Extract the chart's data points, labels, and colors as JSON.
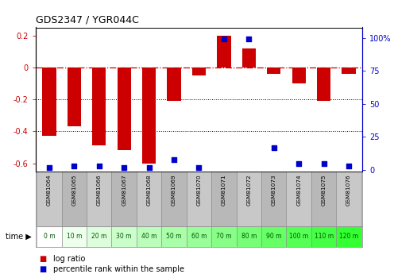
{
  "title": "GDS2347 / YGR044C",
  "samples": [
    "GSM81064",
    "GSM81065",
    "GSM81066",
    "GSM81067",
    "GSM81068",
    "GSM81069",
    "GSM81070",
    "GSM81071",
    "GSM81072",
    "GSM81073",
    "GSM81074",
    "GSM81075",
    "GSM81076"
  ],
  "time_labels": [
    "0 m",
    "10 m",
    "20 m",
    "30 m",
    "40 m",
    "50 m",
    "60 m",
    "70 m",
    "80 m",
    "90 m",
    "100 m",
    "110 m",
    "120 m"
  ],
  "log_ratio": [
    -0.43,
    -0.37,
    -0.49,
    -0.52,
    -0.6,
    -0.21,
    -0.05,
    0.2,
    0.12,
    -0.04,
    -0.1,
    -0.21,
    -0.04
  ],
  "percentile_rank": [
    2,
    3,
    3,
    2,
    2,
    8,
    2,
    99,
    99,
    17,
    5,
    5,
    3
  ],
  "bar_color": "#cc0000",
  "dot_color": "#0000cc",
  "ylim_left": [
    -0.65,
    0.25
  ],
  "ylim_right": [
    -1.08,
    108
  ],
  "yticks_left": [
    -0.6,
    -0.4,
    -0.2,
    0.0,
    0.2
  ],
  "yticks_right": [
    0,
    25,
    50,
    75,
    100
  ],
  "ytick_labels_right": [
    "0",
    "25",
    "50",
    "75",
    "100%"
  ],
  "dotted_lines": [
    -0.2,
    -0.4
  ],
  "background_color": "#ffffff",
  "bar_width": 0.55,
  "time_cell_colors": [
    "#ffffff",
    "#eeffee",
    "#ddfedd",
    "#ccfecc",
    "#bbfebb",
    "#aafea9",
    "#99fe99",
    "#88fe88",
    "#77fe77",
    "#66ff66",
    "#55ff55",
    "#44ff44",
    "#33ff33"
  ]
}
